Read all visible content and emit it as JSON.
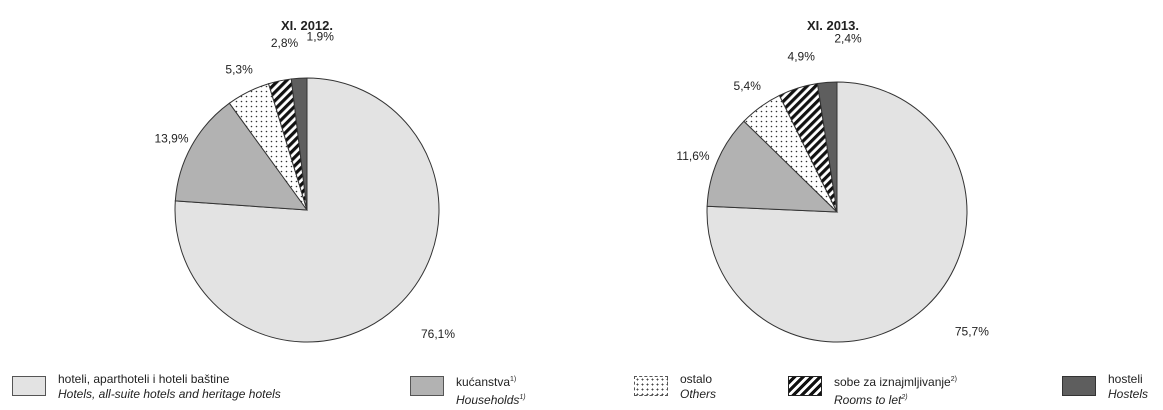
{
  "colors": {
    "hotels": "#e3e3e3",
    "households": "#b2b2b2",
    "others": "dots",
    "rooms": "diagonal-stripes",
    "hostels": "#5e5e5e"
  },
  "chart_data": [
    {
      "type": "pie",
      "title": "XI. 2012.",
      "categories": [
        "hoteli, aparthoteli i hoteli baštine",
        "kućanstva",
        "ostalo",
        "sobe za iznajmljivanje",
        "hostel"
      ],
      "values": [
        76.1,
        13.9,
        5.3,
        2.8,
        1.9
      ],
      "labels": [
        "76,1%",
        "13,9%",
        "5,3%",
        "2,8%",
        "1,9%"
      ]
    },
    {
      "type": "pie",
      "title": "XI. 2013.",
      "categories": [
        "hoteli, aparthoteli i hoteli baštine",
        "kućanstva",
        "ostalo",
        "sobe za iznajmljivanje",
        "hostel"
      ],
      "values": [
        75.7,
        11.6,
        5.4,
        4.9,
        2.4
      ],
      "labels": [
        "75,7%",
        "11,6%",
        "5,4%",
        "4,9%",
        "2,4%"
      ]
    }
  ],
  "legend": [
    {
      "key": "hotels",
      "hr": "hoteli, aparthoteli i hoteli baštine",
      "en": "Hotels, all-suite hotels and heritage hotels",
      "sup_hr": "",
      "sup_en": ""
    },
    {
      "key": "households",
      "hr": "kućanstva",
      "en": "Households",
      "sup_hr": "1)",
      "sup_en": "1)"
    },
    {
      "key": "others",
      "hr": "ostalo",
      "en": "Others",
      "sup_hr": "",
      "sup_en": ""
    },
    {
      "key": "rooms",
      "hr": "sobe za iznajmljivanje",
      "en": "Rooms to let",
      "sup_hr": "2)",
      "sup_en": "2)"
    },
    {
      "key": "hostels",
      "hr": "hosteli",
      "en": "Hostels",
      "sup_hr": "",
      "sup_en": ""
    }
  ]
}
